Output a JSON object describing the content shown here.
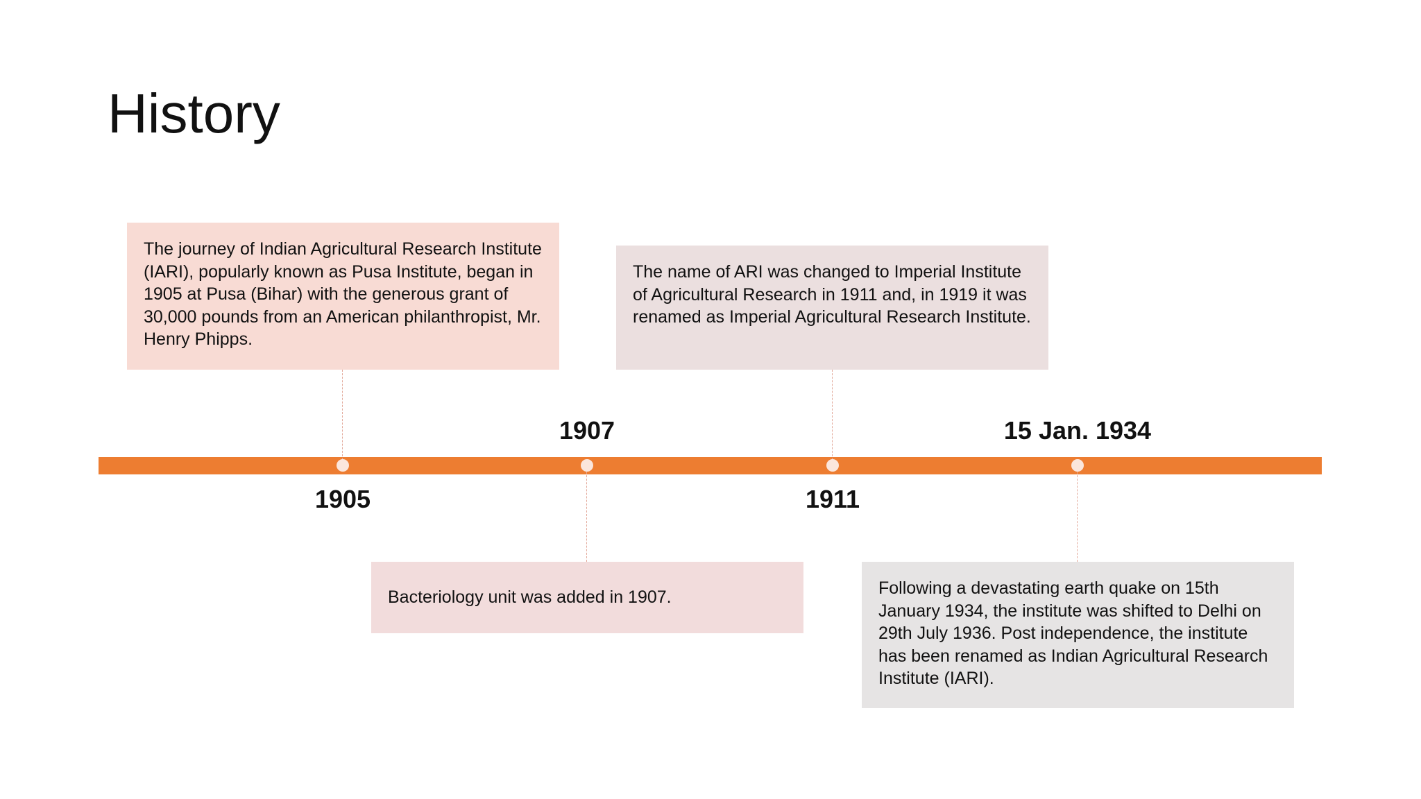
{
  "title": "History",
  "events": [
    {
      "date": "1905",
      "text": "The journey of Indian Agricultural Research Institute (IARI), popularly known as Pusa Institute, began in 1905 at Pusa (Bihar) with the generous grant of 30,000 pounds from an American philanthropist, Mr. Henry Phipps."
    },
    {
      "date": "1907",
      "text": "Bacteriology unit was added in 1907."
    },
    {
      "date": "1911",
      "text": "The name of ARI was changed to Imperial Institute of Agricultural Research in 1911 and, in 1919 it was renamed as Imperial Agricultural Research Institute."
    },
    {
      "date": "15 Jan. 1934",
      "text": "Following a devastating earth quake on 15th January 1934, the institute was shifted to Delhi on 29th July 1936. Post independence, the institute has been renamed as Indian Agricultural Research Institute (IARI)."
    }
  ]
}
